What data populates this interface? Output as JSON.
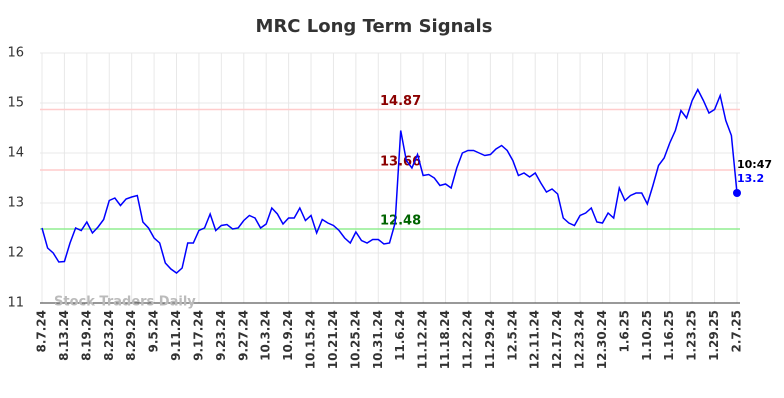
{
  "chart_data": {
    "type": "line",
    "title": "MRC Long Term Signals",
    "watermark": "Stock Traders Daily",
    "categories": [
      "8.7.24",
      null,
      null,
      null,
      "8.13.24",
      null,
      null,
      null,
      "8.19.24",
      null,
      null,
      null,
      "8.23.24",
      null,
      null,
      null,
      "8.29.24",
      null,
      null,
      null,
      "9.5.24",
      null,
      null,
      null,
      "9.11.24",
      null,
      null,
      null,
      "9.17.24",
      null,
      null,
      null,
      "9.23.24",
      null,
      null,
      null,
      "9.27.24",
      null,
      null,
      null,
      "10.3.24",
      null,
      null,
      null,
      "10.9.24",
      null,
      null,
      null,
      "10.15.24",
      null,
      null,
      null,
      "10.21.24",
      null,
      null,
      null,
      "10.25.24",
      null,
      null,
      null,
      "10.31.24",
      null,
      null,
      null,
      "11.6.24",
      null,
      null,
      null,
      "11.12.24",
      null,
      null,
      null,
      "11.18.24",
      null,
      null,
      null,
      "11.22.24",
      null,
      null,
      null,
      "11.29.24",
      null,
      null,
      null,
      "12.5.24",
      null,
      null,
      null,
      "12.11.24",
      null,
      null,
      null,
      "12.17.24",
      null,
      null,
      null,
      "12.23.24",
      null,
      null,
      null,
      "12.30.24",
      null,
      null,
      null,
      "1.6.25",
      null,
      null,
      null,
      "1.10.25",
      null,
      null,
      null,
      "1.16.25",
      null,
      null,
      null,
      "1.23.25",
      null,
      null,
      null,
      "1.29.25",
      null,
      null,
      null,
      "2.7.25"
    ],
    "series": [
      {
        "color": "#0000ff",
        "values": [
          12.5,
          12.1,
          12.0,
          11.82,
          11.83,
          12.2,
          12.5,
          12.45,
          12.62,
          12.4,
          12.52,
          12.67,
          13.05,
          13.1,
          12.95,
          13.08,
          13.12,
          13.15,
          12.62,
          12.5,
          12.3,
          12.2,
          11.8,
          11.68,
          11.6,
          11.7,
          12.2,
          12.2,
          12.45,
          12.5,
          12.78,
          12.45,
          12.55,
          12.57,
          12.48,
          12.5,
          12.65,
          12.75,
          12.7,
          12.5,
          12.58,
          12.9,
          12.78,
          12.58,
          12.7,
          12.7,
          12.9,
          12.65,
          12.75,
          12.4,
          12.67,
          12.6,
          12.55,
          12.45,
          12.3,
          12.2,
          12.42,
          12.25,
          12.2,
          12.27,
          12.27,
          12.18,
          12.2,
          12.6,
          14.45,
          13.85,
          13.7,
          13.97,
          13.55,
          13.57,
          13.5,
          13.35,
          13.38,
          13.3,
          13.7,
          14.0,
          14.05,
          14.05,
          14.0,
          13.95,
          13.97,
          14.08,
          14.15,
          14.05,
          13.85,
          13.55,
          13.6,
          13.52,
          13.6,
          13.4,
          13.22,
          13.28,
          13.18,
          12.7,
          12.6,
          12.55,
          12.75,
          12.8,
          12.9,
          12.62,
          12.6,
          12.8,
          12.7,
          13.3,
          13.05,
          13.15,
          13.2,
          13.2,
          12.98,
          13.35,
          13.75,
          13.9,
          14.2,
          14.45,
          14.85,
          14.7,
          15.05,
          15.27,
          15.05,
          14.8,
          14.87,
          15.15,
          14.65,
          14.35,
          13.2
        ]
      }
    ],
    "last_time": "10:47",
    "hlines": [
      {
        "value": 14.87,
        "color": "#ffcccc",
        "text_color": "#8b0000"
      },
      {
        "value": 13.66,
        "color": "#ffcccc",
        "text_color": "#8b0000"
      },
      {
        "value": 12.48,
        "color": "#90ee90",
        "text_color": "#006400"
      }
    ],
    "ylim": [
      11,
      16
    ],
    "yticks": [
      11,
      12,
      13,
      14,
      15,
      16
    ],
    "grid": true
  }
}
